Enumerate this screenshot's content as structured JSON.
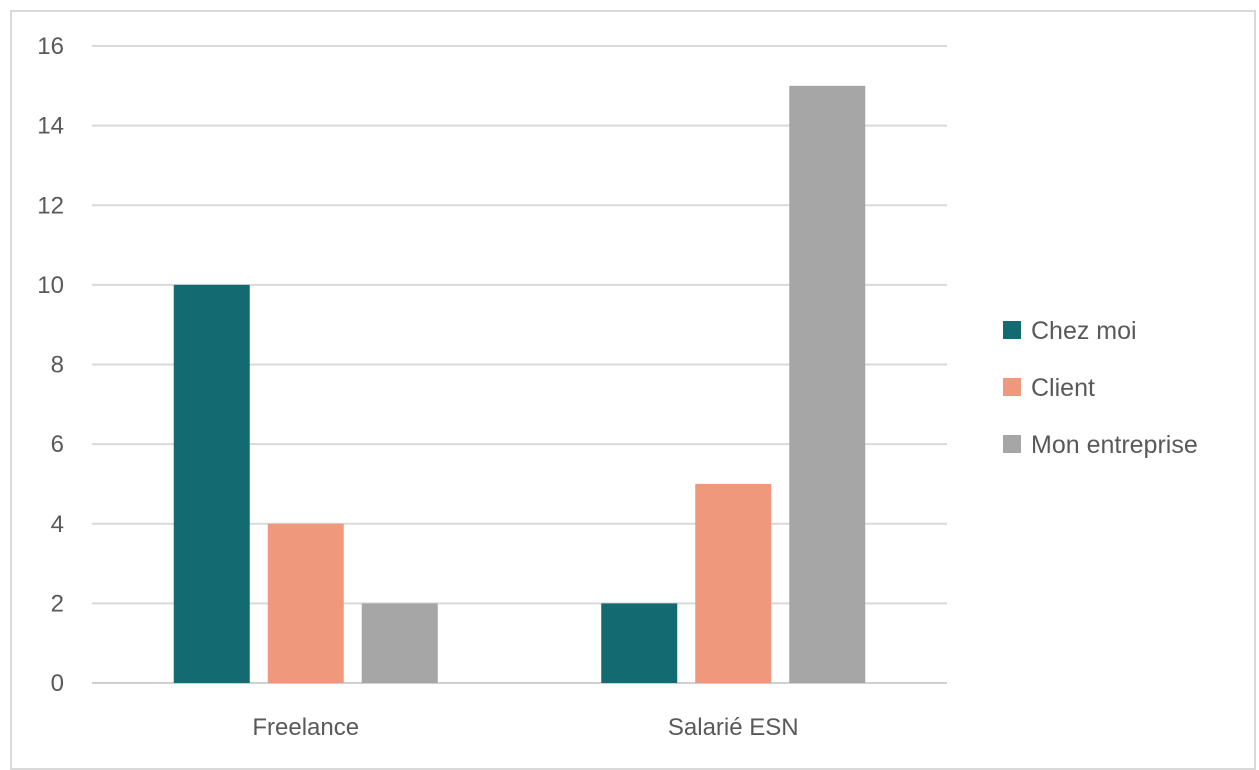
{
  "chart_data": {
    "type": "bar",
    "title": "",
    "xlabel": "",
    "ylabel": "",
    "categories": [
      "Freelance",
      "Salarié ESN"
    ],
    "series": [
      {
        "name": "Chez moi",
        "values": [
          10,
          2
        ],
        "color": "#146a71"
      },
      {
        "name": "Client",
        "values": [
          4,
          5
        ],
        "color": "#f0987b"
      },
      {
        "name": "Mon entreprise",
        "values": [
          2,
          15
        ],
        "color": "#a6a6a6"
      }
    ],
    "ylim": [
      0,
      16
    ],
    "yticks": [
      0,
      2,
      4,
      6,
      8,
      10,
      12,
      14,
      16
    ],
    "grid": true,
    "legend_position": "right"
  }
}
